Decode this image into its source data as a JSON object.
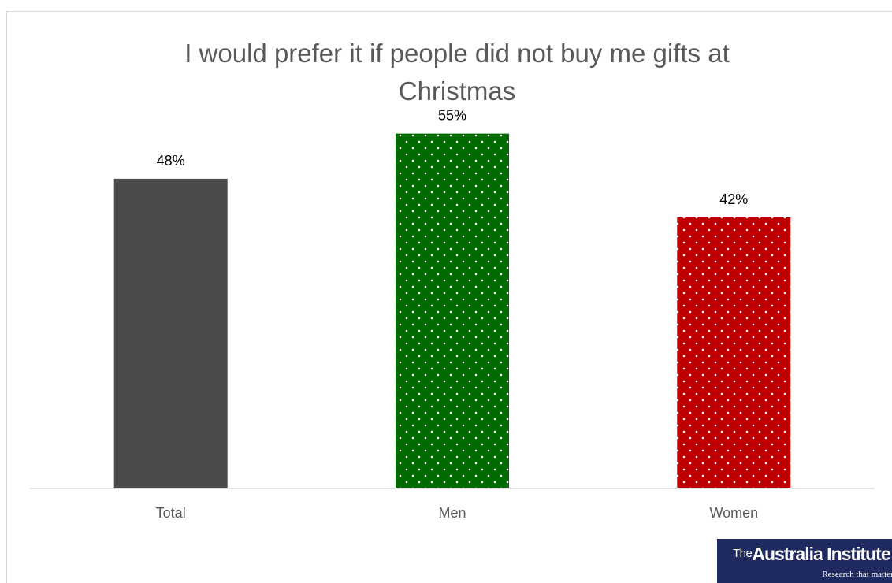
{
  "chart_data": {
    "type": "bar",
    "title_lines": [
      "I would prefer it if people did not buy me gifts at",
      "Christmas"
    ],
    "categories": [
      "Total",
      "Men",
      "Women"
    ],
    "values": [
      48,
      55,
      42
    ],
    "data_labels": [
      "48%",
      "55%",
      "42%"
    ],
    "value_unit": "%",
    "ylim": [
      0,
      58
    ],
    "grid": false,
    "legend": "none",
    "bar_colors": [
      "#4a4a4a",
      "#006b00",
      "#c00000"
    ],
    "bar_patterns": [
      "solid",
      "dotted",
      "dotted"
    ],
    "dot_color": "#ffffff"
  },
  "logo": {
    "prefix": "The",
    "name": "Australia Institute",
    "tagline": "Research that matters",
    "background": "#1f2a60"
  }
}
